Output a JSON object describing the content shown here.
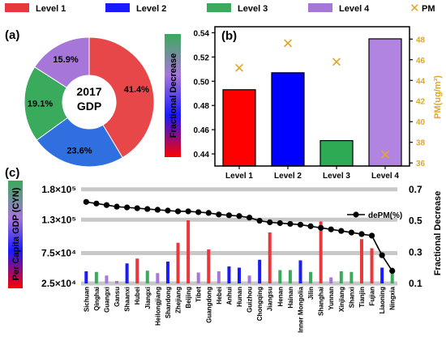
{
  "legend": {
    "items": [
      {
        "label": "Level 1",
        "color": "#e8383d"
      },
      {
        "label": "Level 2",
        "color": "#1a1aff"
      },
      {
        "label": "Level 3",
        "color": "#3aaa5c"
      },
      {
        "label": "Level 4",
        "color": "#a676d9"
      }
    ],
    "pm_label": "PM",
    "pm_marker": "x-marker-icon",
    "pm_color": "#e0a62e"
  },
  "panels": {
    "a": "(a)",
    "b": "(b)",
    "c": "(c)"
  },
  "chart_data": [
    {
      "type": "pie",
      "panel": "(a)",
      "center_label": [
        "2017",
        "GDP"
      ],
      "slices": [
        {
          "label": "41.4%",
          "value": 41.4,
          "color": "#e8474a"
        },
        {
          "label": "23.6%",
          "value": 23.6,
          "color": "#2f6fe0"
        },
        {
          "label": "19.1%",
          "value": 19.1,
          "color": "#3aaa5c"
        },
        {
          "label": "15.9%",
          "value": 15.9,
          "color": "#a676d9"
        }
      ]
    },
    {
      "type": "bar",
      "panel": "(b)",
      "categories": [
        "Level 1",
        "Level 2",
        "Level 3",
        "Level 4"
      ],
      "values": [
        0.493,
        0.507,
        0.451,
        0.535
      ],
      "colors": [
        "#ff0000",
        "#0000ff",
        "#2eaa55",
        "#b084e0"
      ],
      "ylabel": "Fractional Decrease",
      "ylim": [
        0.43,
        0.545
      ],
      "yticks": [
        0.44,
        0.46,
        0.48,
        0.5,
        0.52,
        0.54
      ],
      "ytick_labels": [
        "0.44",
        "0.46",
        "0.48",
        "0.50",
        "0.52",
        "0.54"
      ],
      "y2label": "PM(ug/m³)",
      "y2lim": [
        35.7,
        49.2
      ],
      "y2ticks": [
        36,
        38,
        40,
        42,
        44,
        46,
        48
      ],
      "pm_values": [
        45.2,
        47.6,
        45.8,
        36.8
      ]
    },
    {
      "type": "bar",
      "panel": "(c)",
      "categories": [
        "Sichuan",
        "Qinghai",
        "Guangxi",
        "Gansu",
        "Shaanxi",
        "Hubei",
        "Jiangxi",
        "Heilongjiang",
        "Shandong",
        "Zhejiang",
        "Beijing",
        "Tibet",
        "Guangdong",
        "Hebei",
        "Anhui",
        "Hunan",
        "Guizhou",
        "Chongqing",
        "Jiangsu",
        "Henan",
        "Hainan",
        "Inner Mongolia",
        "Jilin",
        "Shanghai",
        "Yunnan",
        "Xinjiang",
        "Shanxi",
        "Tianjin",
        "Fujian",
        "Liaoning",
        "Ningxia"
      ],
      "values": [
        45000,
        44000,
        38000,
        29000,
        58000,
        66000,
        46000,
        42000,
        61000,
        92000,
        129000,
        43000,
        81000,
        45000,
        53000,
        51000,
        38000,
        64000,
        109000,
        47000,
        47000,
        63000,
        44000,
        127000,
        35000,
        45000,
        44000,
        98000,
        83000,
        51000,
        51000
      ],
      "bar_colors": [
        "#1a1aff",
        "#3aaa5c",
        "#a676d9",
        "#a676d9",
        "#1a1aff",
        "#e8383d",
        "#3aaa5c",
        "#a676d9",
        "#1a1aff",
        "#e8383d",
        "#e8383d",
        "#a676d9",
        "#e8383d",
        "#a676d9",
        "#1a1aff",
        "#1a1aff",
        "#a676d9",
        "#1a1aff",
        "#e8383d",
        "#3aaa5c",
        "#3aaa5c",
        "#1a1aff",
        "#3aaa5c",
        "#e8383d",
        "#a676d9",
        "#3aaa5c",
        "#3aaa5c",
        "#e8383d",
        "#e8383d",
        "#1a1aff",
        "#3aaa5c"
      ],
      "ylabel": "Per Capita GDP (CYN)",
      "ylim": [
        25000,
        185000
      ],
      "yticks": [
        25000,
        75000,
        130000,
        180000
      ],
      "ytick_labels": [
        "2.5×10⁴",
        "7.5×10⁴",
        "1.3×10⁵",
        "1.8×10⁵"
      ],
      "line_series": {
        "name": "dePM(%)",
        "values": [
          0.62,
          0.61,
          0.6,
          0.59,
          0.585,
          0.58,
          0.575,
          0.57,
          0.565,
          0.56,
          0.56,
          0.555,
          0.55,
          0.54,
          0.535,
          0.53,
          0.52,
          0.5,
          0.49,
          0.485,
          0.48,
          0.475,
          0.465,
          0.455,
          0.445,
          0.435,
          0.425,
          0.415,
          0.405,
          0.28,
          0.18
        ]
      },
      "y2label": "Fractional Decrease",
      "y2lim": [
        0.1,
        0.72
      ],
      "y2ticks": [
        0.1,
        0.3,
        0.5,
        0.7
      ],
      "y2tick_labels": [
        "0.1",
        "0.3",
        "0.5",
        "0.7"
      ],
      "grid": true
    }
  ]
}
